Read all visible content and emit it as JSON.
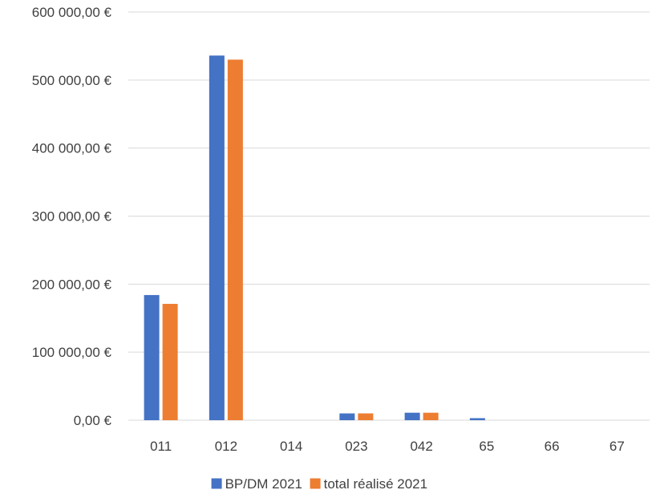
{
  "colors": {
    "series_1": "#4472C4",
    "series_2": "#ED7D31",
    "grid": "#D9D9D9",
    "text": "#404040"
  },
  "chart_data": {
    "type": "bar",
    "title": "",
    "xlabel": "",
    "ylabel": "",
    "categories": [
      "011",
      "012",
      "014",
      "023",
      "042",
      "65",
      "66",
      "67"
    ],
    "series": [
      {
        "name": "BP/DM 2021",
        "color": "#4472C4",
        "values": [
          184000,
          536000,
          0,
          10000,
          11000,
          3000,
          0,
          0
        ]
      },
      {
        "name": "total réalisé 2021",
        "color": "#ED7D31",
        "values": [
          171000,
          530000,
          0,
          10000,
          11000,
          0,
          0,
          0
        ]
      }
    ],
    "ylim": [
      0,
      600000
    ],
    "y_ticks": [
      0,
      100000,
      200000,
      300000,
      400000,
      500000,
      600000
    ],
    "y_tick_labels": [
      "0,00 €",
      "100 000,00 €",
      "200 000,00 €",
      "300 000,00 €",
      "400 000,00 €",
      "500 000,00 €",
      "600 000,00 €"
    ],
    "grid": true,
    "legend": {
      "position": "bottom",
      "entries": [
        "BP/DM 2021",
        "total réalisé 2021"
      ]
    }
  }
}
